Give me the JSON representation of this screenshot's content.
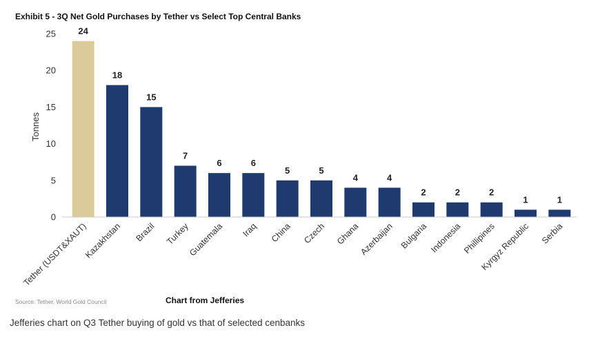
{
  "header": {
    "title": "Exhibit 5 - 3Q Net Gold Purchases by Tether vs Select Top Central Banks"
  },
  "chart_data": {
    "type": "bar",
    "ylabel": "Tonnes",
    "xlabel": "",
    "ylim": [
      0,
      25
    ],
    "yticks": [
      0,
      5,
      10,
      15,
      20,
      25
    ],
    "grid": false,
    "categories": [
      "Tether (USDT&XAUT)",
      "Kazakhstan",
      "Brazil",
      "Turkey",
      "Guatemala",
      "Iraq",
      "China",
      "Czech",
      "Ghana",
      "Azerbaijan",
      "Bulgaria",
      "Indonesia",
      "Phillipines",
      "Kyrgyz Republic",
      "Serbia"
    ],
    "values": [
      24,
      18,
      15,
      7,
      6,
      6,
      5,
      5,
      4,
      4,
      2,
      2,
      2,
      1,
      1
    ],
    "data_labels": [
      "24",
      "18",
      "15",
      "7",
      "6",
      "6",
      "5",
      "5",
      "4",
      "4",
      "2",
      "2",
      "2",
      "1",
      "1"
    ],
    "colors": {
      "highlight": "#dccb9a",
      "default": "#1f3a6e"
    },
    "highlight_index": 0
  },
  "footer": {
    "source": "Source: Tether, World Gold Council",
    "credit": "Chart from Jefferies",
    "caption": "Jefferies chart on Q3 Tether buying of gold vs that of selected cenbanks"
  }
}
